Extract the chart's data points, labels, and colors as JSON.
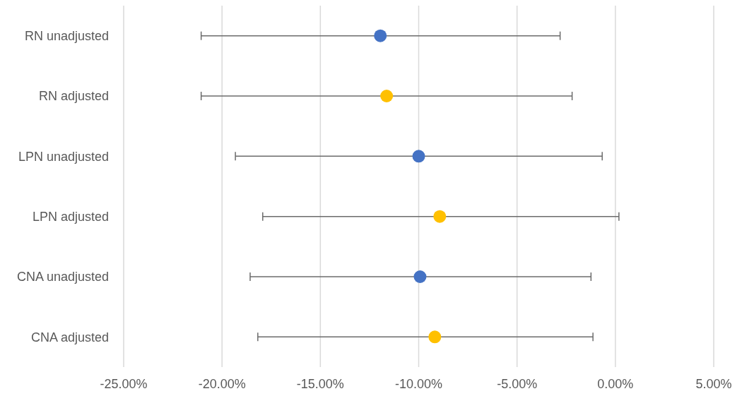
{
  "chart_data": {
    "type": "scatter",
    "orientation": "horizontal",
    "categories": [
      "RN unadjusted",
      "RN adjusted",
      "LPN unadjusted",
      "LPN adjusted",
      "CNA unadjusted",
      "CNA adjusted"
    ],
    "values": [
      -11.95,
      -11.63,
      -10.0,
      -8.93,
      -9.93,
      -9.18
    ],
    "colors": [
      "#4472c4",
      "#ffc000",
      "#4472c4",
      "#ffc000",
      "#4472c4",
      "#ffc000"
    ],
    "errors": [
      [
        -21.06,
        -2.81
      ],
      [
        -21.06,
        -2.2
      ],
      [
        -19.32,
        -0.67
      ],
      [
        -17.93,
        0.18
      ],
      [
        -18.57,
        -1.24
      ],
      [
        -18.18,
        -1.14
      ]
    ],
    "xlim": [
      -25,
      5
    ],
    "xticks": [
      {
        "value": -25,
        "label": "-25.00%"
      },
      {
        "value": -20,
        "label": "-20.00%"
      },
      {
        "value": -15,
        "label": "-15.00%"
      },
      {
        "value": -10,
        "label": "-10.00%"
      },
      {
        "value": -5,
        "label": "-5.00%"
      },
      {
        "value": 0,
        "label": "0.00%"
      },
      {
        "value": 5,
        "label": "5.00%"
      }
    ],
    "grid": "x",
    "marker": "circle"
  }
}
